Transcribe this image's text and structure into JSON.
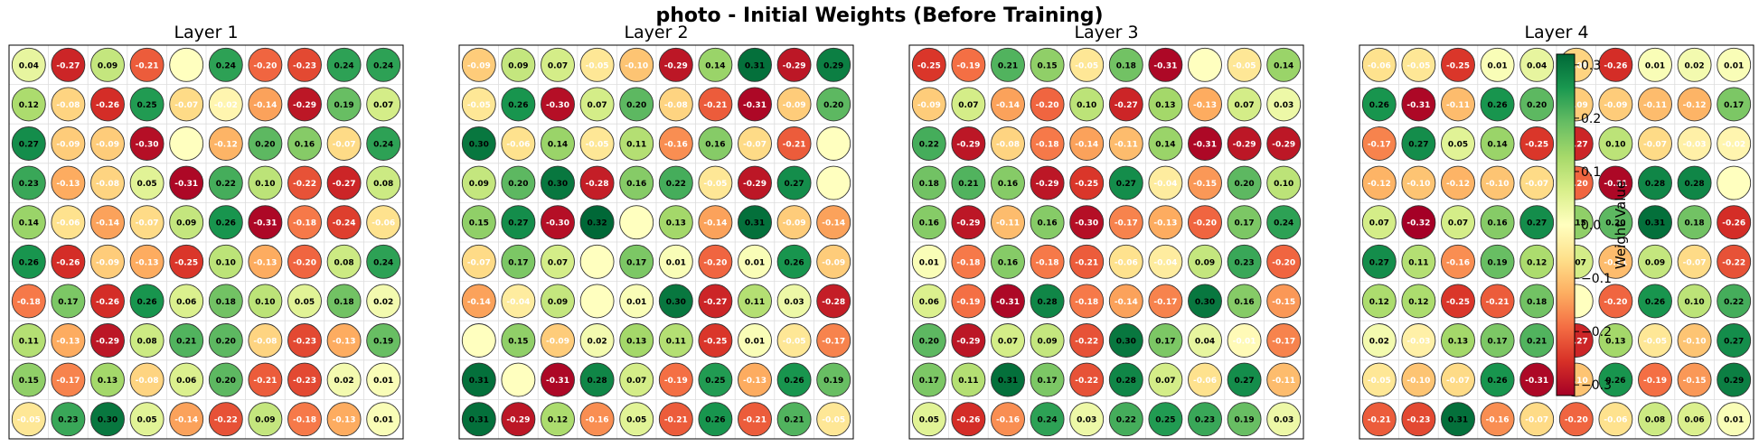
{
  "figure": {
    "title": "photo - Initial Weights (Before Training)"
  },
  "colorbar": {
    "label": "Weight Value",
    "ticks": [
      0.3,
      0.2,
      0.1,
      0.0,
      -0.1,
      -0.2,
      -0.3
    ],
    "tick_labels": [
      "0.3",
      "0.2",
      "0.1",
      "0.0",
      "−0.1",
      "−0.2",
      "−0.3"
    ],
    "vmin": -0.32,
    "vmax": 0.32,
    "colormap": "RdYlGn"
  },
  "chart_data": [
    {
      "type": "heatmap",
      "title": "Layer 1",
      "values": [
        [
          0.04,
          -0.27,
          0.09,
          -0.21,
          0.0,
          0.24,
          -0.2,
          -0.23,
          0.24,
          0.24
        ],
        [
          0.12,
          -0.08,
          -0.26,
          0.25,
          -0.07,
          -0.02,
          -0.14,
          -0.29,
          0.19,
          0.07
        ],
        [
          0.27,
          -0.09,
          -0.09,
          -0.3,
          0.0,
          -0.12,
          0.2,
          0.16,
          -0.07,
          0.24
        ],
        [
          0.23,
          -0.13,
          -0.08,
          0.05,
          -0.31,
          0.22,
          0.1,
          -0.22,
          -0.27,
          0.08
        ],
        [
          0.14,
          -0.06,
          -0.14,
          -0.07,
          0.09,
          0.26,
          -0.31,
          -0.18,
          -0.24,
          -0.06
        ],
        [
          0.26,
          -0.26,
          -0.09,
          -0.13,
          -0.25,
          0.1,
          -0.13,
          -0.2,
          0.08,
          0.24
        ],
        [
          -0.18,
          0.17,
          -0.26,
          0.26,
          0.06,
          0.18,
          0.1,
          0.05,
          0.18,
          0.02
        ],
        [
          0.11,
          -0.13,
          -0.29,
          0.08,
          0.21,
          0.2,
          -0.08,
          -0.23,
          -0.13,
          0.19
        ],
        [
          0.15,
          -0.17,
          0.13,
          -0.08,
          0.06,
          0.2,
          -0.21,
          -0.23,
          0.02,
          0.01
        ],
        [
          -0.05,
          0.23,
          0.3,
          0.05,
          -0.14,
          -0.22,
          0.09,
          -0.18,
          -0.13,
          0.01
        ]
      ]
    },
    {
      "type": "heatmap",
      "title": "Layer 2",
      "values": [
        [
          -0.09,
          0.09,
          0.07,
          -0.05,
          -0.1,
          -0.29,
          0.14,
          0.31,
          -0.29,
          0.29
        ],
        [
          -0.05,
          0.26,
          -0.3,
          0.07,
          0.2,
          -0.08,
          -0.21,
          -0.31,
          -0.09,
          0.2
        ],
        [
          0.3,
          -0.06,
          0.14,
          -0.05,
          0.11,
          -0.16,
          0.16,
          -0.07,
          -0.21,
          0.0
        ],
        [
          0.09,
          0.2,
          0.3,
          -0.28,
          0.16,
          0.22,
          -0.05,
          -0.29,
          0.27,
          0.0
        ],
        [
          0.15,
          0.27,
          -0.3,
          0.32,
          0.0,
          0.13,
          -0.14,
          0.31,
          -0.09,
          -0.14
        ],
        [
          -0.07,
          0.17,
          0.07,
          0.0,
          0.17,
          0.01,
          -0.2,
          0.01,
          0.26,
          -0.09
        ],
        [
          -0.14,
          -0.04,
          0.09,
          0.0,
          0.01,
          0.3,
          -0.27,
          0.11,
          0.03,
          -0.28
        ],
        [
          0.0,
          0.15,
          -0.09,
          0.02,
          0.13,
          0.11,
          -0.25,
          0.01,
          -0.05,
          -0.17
        ],
        [
          0.31,
          0.0,
          -0.31,
          0.28,
          0.07,
          -0.19,
          0.25,
          -0.13,
          0.26,
          0.19
        ],
        [
          0.31,
          -0.29,
          0.12,
          -0.16,
          0.05,
          -0.21,
          0.26,
          -0.21,
          0.21,
          -0.05
        ]
      ]
    },
    {
      "type": "heatmap",
      "title": "Layer 3",
      "values": [
        [
          -0.25,
          -0.19,
          0.21,
          0.15,
          -0.05,
          0.18,
          -0.31,
          0.0,
          -0.05,
          0.14
        ],
        [
          -0.09,
          0.07,
          -0.14,
          -0.2,
          0.1,
          -0.27,
          0.13,
          -0.13,
          0.07,
          0.03
        ],
        [
          0.22,
          -0.29,
          -0.08,
          -0.18,
          -0.14,
          -0.11,
          0.14,
          -0.31,
          -0.29,
          -0.29
        ],
        [
          0.18,
          0.21,
          0.16,
          -0.29,
          -0.25,
          0.27,
          -0.04,
          -0.15,
          0.2,
          0.1
        ],
        [
          0.16,
          -0.29,
          -0.11,
          0.16,
          -0.3,
          -0.17,
          -0.13,
          -0.2,
          0.17,
          0.24
        ],
        [
          0.01,
          -0.18,
          0.16,
          -0.18,
          -0.21,
          -0.06,
          -0.04,
          0.09,
          0.23,
          -0.2
        ],
        [
          0.06,
          -0.19,
          -0.31,
          0.28,
          -0.18,
          -0.14,
          -0.17,
          0.3,
          0.16,
          -0.15
        ],
        [
          0.2,
          -0.29,
          0.07,
          0.09,
          -0.22,
          0.3,
          0.17,
          0.04,
          -0.01,
          -0.17
        ],
        [
          0.17,
          0.11,
          0.31,
          0.17,
          -0.22,
          0.28,
          0.07,
          -0.06,
          0.27,
          -0.11
        ],
        [
          0.05,
          -0.26,
          -0.16,
          0.24,
          0.03,
          0.22,
          0.25,
          0.23,
          0.19,
          0.03
        ]
      ]
    },
    {
      "type": "heatmap",
      "title": "Layer 4",
      "values": [
        [
          -0.06,
          -0.05,
          -0.25,
          0.01,
          0.04,
          -0.08,
          -0.26,
          0.01,
          0.02,
          0.01
        ],
        [
          0.26,
          -0.31,
          -0.11,
          0.26,
          0.2,
          -0.09,
          -0.09,
          -0.11,
          -0.12,
          0.17
        ],
        [
          -0.17,
          0.27,
          0.05,
          0.14,
          -0.25,
          -0.27,
          0.1,
          -0.07,
          -0.03,
          -0.02
        ],
        [
          -0.12,
          -0.1,
          -0.12,
          -0.1,
          -0.07,
          -0.2,
          -0.31,
          0.28,
          0.28,
          0.0
        ],
        [
          0.07,
          -0.32,
          0.07,
          0.16,
          0.27,
          0.15,
          0.2,
          0.31,
          0.18,
          -0.26
        ],
        [
          0.27,
          0.11,
          -0.16,
          0.19,
          0.12,
          0.07,
          -0.11,
          0.09,
          -0.07,
          -0.22
        ],
        [
          0.12,
          0.12,
          -0.25,
          -0.21,
          0.18,
          0.0,
          -0.2,
          0.26,
          0.1,
          0.22
        ],
        [
          0.02,
          -0.03,
          0.13,
          0.17,
          0.21,
          -0.27,
          0.13,
          -0.05,
          -0.1,
          0.27
        ],
        [
          -0.05,
          -0.1,
          -0.07,
          0.26,
          -0.31,
          -0.1,
          0.26,
          -0.19,
          -0.15,
          0.29
        ],
        [
          -0.21,
          -0.23,
          0.31,
          -0.16,
          -0.07,
          -0.2,
          -0.06,
          0.08,
          0.06,
          0.01
        ]
      ]
    }
  ]
}
